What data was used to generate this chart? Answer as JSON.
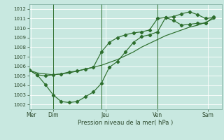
{
  "title": "",
  "xlabel": "Pression niveau de la mer( hPa )",
  "ylabel": "",
  "bg_color": "#c8e8e0",
  "grid_color": "#b0d8d0",
  "line_color": "#2d6e2d",
  "ylim": [
    1001.5,
    1012.5
  ],
  "xlim": [
    0,
    9.6
  ],
  "series1_x": [
    0,
    0.4,
    0.8,
    1.2,
    1.6,
    2.0,
    2.4,
    2.8,
    3.2,
    3.6,
    4.0,
    4.4,
    4.8,
    5.2,
    5.6,
    6.0,
    6.4,
    6.8,
    7.2,
    7.6,
    8.0,
    8.4,
    8.8,
    9.2
  ],
  "series1_y": [
    1005.6,
    1005.3,
    1005.2,
    1005.1,
    1005.2,
    1005.3,
    1005.5,
    1005.7,
    1005.9,
    1006.1,
    1006.4,
    1006.7,
    1007.1,
    1007.5,
    1008.0,
    1008.4,
    1008.8,
    1009.2,
    1009.5,
    1009.8,
    1010.1,
    1010.3,
    1010.6,
    1011.0
  ],
  "series2_x": [
    0,
    0.4,
    0.8,
    1.2,
    1.6,
    2.0,
    2.4,
    2.8,
    3.2,
    3.6,
    4.0,
    4.4,
    4.8,
    5.2,
    5.6,
    6.0,
    6.4,
    6.8,
    7.2,
    7.6,
    8.0,
    8.4,
    8.8,
    9.2
  ],
  "series2_y": [
    1005.6,
    1005.1,
    1004.1,
    1003.0,
    1002.3,
    1002.2,
    1002.3,
    1002.8,
    1003.3,
    1004.2,
    1005.9,
    1006.5,
    1007.5,
    1008.5,
    1009.1,
    1009.3,
    1009.6,
    1011.1,
    1011.2,
    1011.5,
    1011.7,
    1011.4,
    1011.0,
    1011.1
  ],
  "series3_x": [
    0,
    0.4,
    0.8,
    1.2,
    1.6,
    2.0,
    2.4,
    2.8,
    3.2,
    3.6,
    4.0,
    4.4,
    4.8,
    5.2,
    5.6,
    6.0,
    6.4,
    6.8,
    7.2,
    7.6,
    8.0,
    8.4,
    8.8,
    9.2
  ],
  "series3_y": [
    1005.6,
    1005.1,
    1005.0,
    1005.1,
    1005.2,
    1005.4,
    1005.5,
    1005.7,
    1005.9,
    1007.5,
    1008.5,
    1009.0,
    1009.3,
    1009.5,
    1009.6,
    1009.8,
    1011.0,
    1011.1,
    1010.8,
    1010.3,
    1010.4,
    1010.5,
    1010.5,
    1011.2
  ],
  "vlines_x": [
    1.2,
    3.6,
    6.4
  ],
  "day_labels": [
    "Mer",
    "Dim",
    "Jeu",
    "Ven",
    "Sam"
  ],
  "day_positions": [
    0.1,
    1.2,
    3.8,
    6.4,
    8.9
  ]
}
